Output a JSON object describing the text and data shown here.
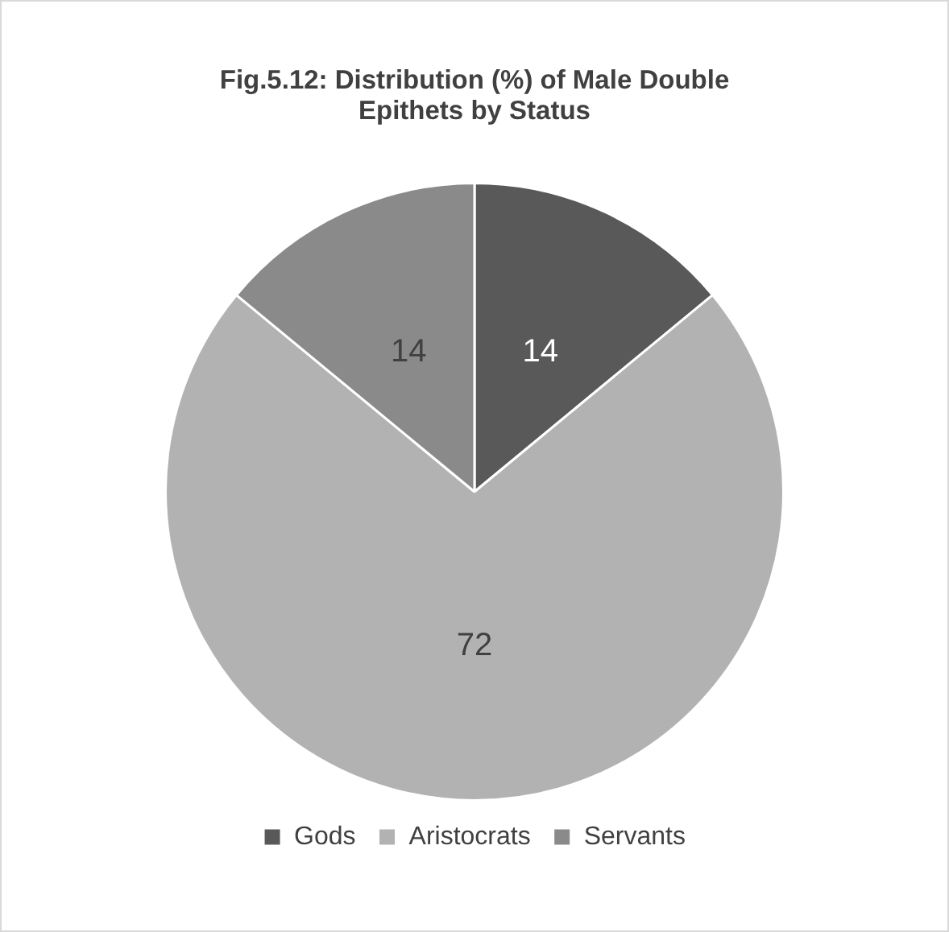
{
  "chart_data": {
    "type": "pie",
    "title": "Fig.5.12: Distribution (%) of Male Double Epithets by Status",
    "categories": [
      "Gods",
      "Aristocrats",
      "Servants"
    ],
    "values": [
      14,
      72,
      14
    ],
    "colors": [
      "#595959",
      "#b2b2b2",
      "#8a8a8a"
    ],
    "data_labels": true,
    "legend": "bottom"
  }
}
